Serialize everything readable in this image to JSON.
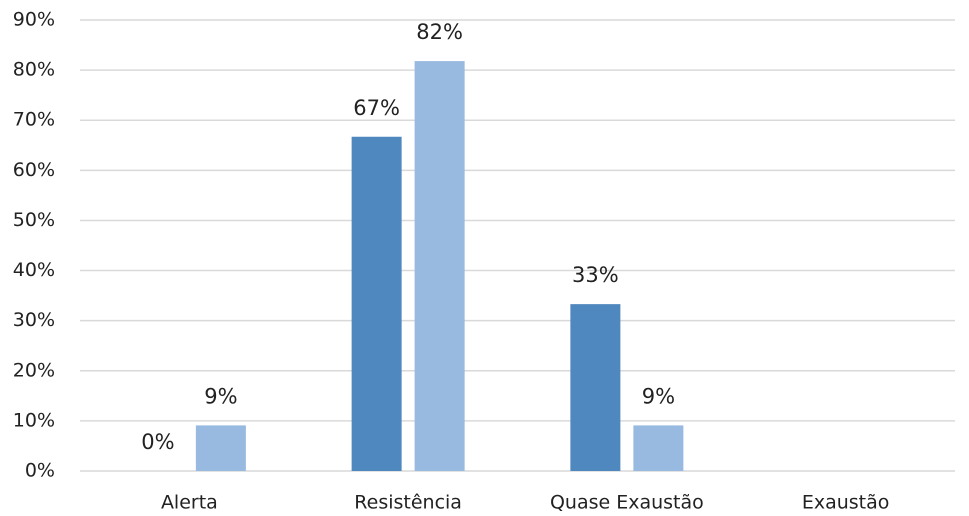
{
  "chart_data": {
    "type": "bar",
    "categories": [
      "Alerta",
      "Resistência",
      "Quase Exaustão",
      "Exaustão"
    ],
    "series": [
      {
        "color": "#4f88be",
        "values": [
          0,
          66.7,
          33.3,
          null
        ],
        "value_labels": [
          "0%",
          "67%",
          "33%",
          null
        ]
      },
      {
        "color": "#98b9e0",
        "values": [
          9.1,
          81.8,
          9.1,
          null
        ],
        "value_labels": [
          "9%",
          "82%",
          "9%",
          null
        ]
      }
    ],
    "ylim": [
      0,
      90
    ],
    "yticks": [
      {
        "value": 0,
        "label": "0%"
      },
      {
        "value": 10,
        "label": "10%"
      },
      {
        "value": 20,
        "label": "20%"
      },
      {
        "value": 30,
        "label": "30%"
      },
      {
        "value": 40,
        "label": "40%"
      },
      {
        "value": 50,
        "label": "50%"
      },
      {
        "value": 60,
        "label": "60%"
      },
      {
        "value": 70,
        "label": "70%"
      },
      {
        "value": 80,
        "label": "80%"
      },
      {
        "value": 90,
        "label": "90%"
      }
    ],
    "grid": true
  }
}
